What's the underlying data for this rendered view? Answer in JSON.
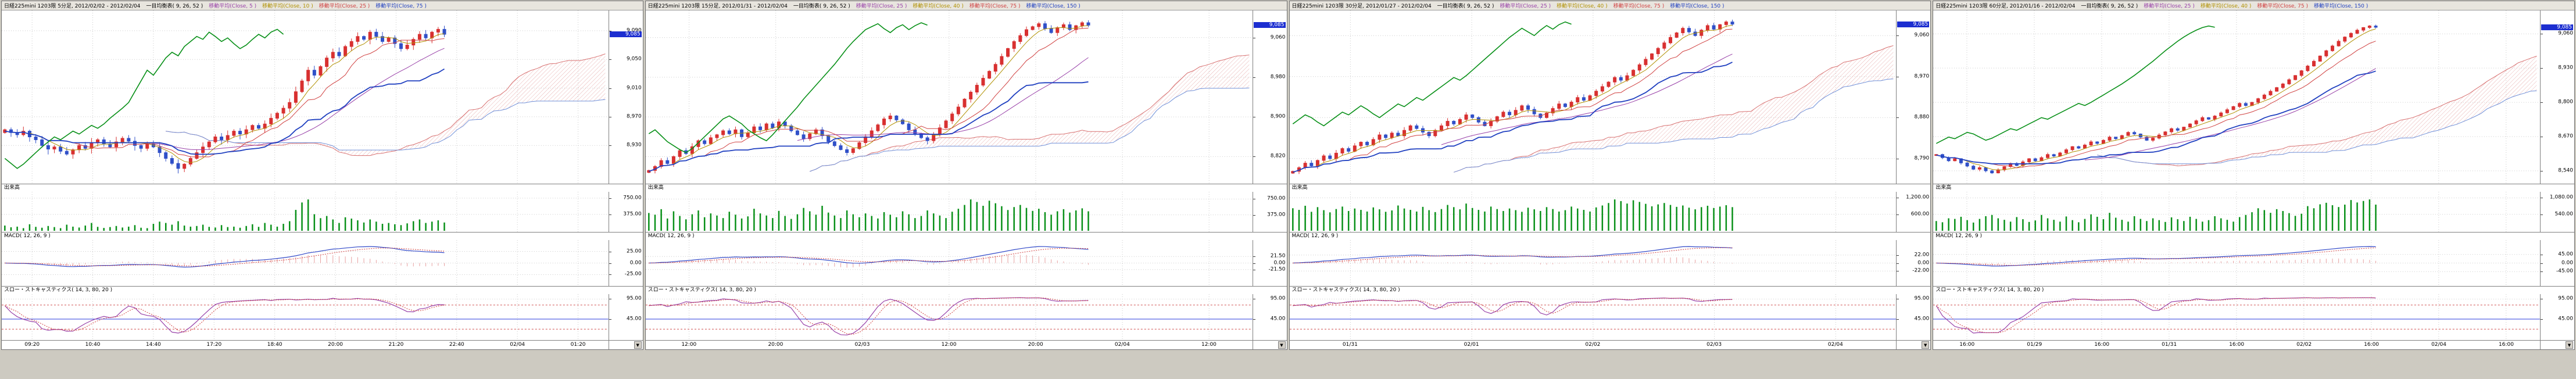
{
  "ui": {
    "scroll_button_glyph": "▼"
  },
  "colors": {
    "candle_up": "#d83030",
    "candle_down": "#3050c8",
    "volume": "#089018",
    "tenkan": "#d04040",
    "kijun": "#2040c0",
    "chikou": "#089018",
    "ma_fast": "#b09000",
    "ma_slow": "#9840a8",
    "macd_line": "#3048c8",
    "macd_signal": "#d04040",
    "macd_hist": "#e8a0a0",
    "stoch_k": "#9840a8",
    "stoch_d": "#d04040",
    "stoch_mid": "#4050e0",
    "stoch_band": "#d05050",
    "cloud_a": "#d87070",
    "cloud_b": "#7090d8",
    "cloud_hatch": "#e8b0b0",
    "grid": "#c8c8c8",
    "axis_box_bg": "#1c2ed0"
  },
  "panels": [
    {
      "header": {
        "title": "日経225mini 1203限 5分足, 2012/02/02 - 2012/02/04",
        "indicators": [
          {
            "label": "一目均衡表( 9, 26, 52 )",
            "color": "#000000"
          },
          {
            "label": "移動平均(Close, 5 )",
            "color": "#9840a8"
          },
          {
            "label": "移動平均(Close, 10 )",
            "color": "#b09000"
          },
          {
            "label": "移動平均(Close, 25 )",
            "color": "#d04040"
          },
          {
            "label": "移動平均(Close, 75 )",
            "color": "#2040c0"
          }
        ]
      },
      "price_axis": {
        "labels": [
          "9,090",
          "9,050",
          "9,010",
          "8,970",
          "8,930"
        ],
        "range": [
          8880,
          9115
        ],
        "last_price": "9,085"
      },
      "volume_section": {
        "label": "出来高",
        "axis_labels": [
          "750.00",
          "375.00"
        ]
      },
      "macd_section": {
        "label": "MACD( 12, 26, 9 )",
        "axis_labels": [
          "25.00",
          "0.00",
          "-25.00"
        ]
      },
      "stoch_section": {
        "label": "スロー・ストキャスティクス( 14, 3, 80, 20 )",
        "axis_labels": [
          "95.00",
          "45.00"
        ]
      },
      "x_axis_labels": [
        "09:20",
        "10:40",
        "14:40",
        "17:20",
        "18:40",
        "20:00",
        "21:20",
        "22:40",
        "02/04",
        "01:20"
      ],
      "chart_data": {
        "type": "candlestick",
        "closes": [
          8952,
          8948,
          8945,
          8950,
          8942,
          8938,
          8930,
          8925,
          8928,
          8922,
          8918,
          8924,
          8930,
          8926,
          8934,
          8938,
          8932,
          8928,
          8935,
          8940,
          8936,
          8930,
          8926,
          8932,
          8928,
          8920,
          8912,
          8905,
          8898,
          8904,
          8912,
          8920,
          8928,
          8935,
          8942,
          8938,
          8944,
          8950,
          8946,
          8952,
          8958,
          8954,
          8960,
          8968,
          8975,
          8982,
          8990,
          9005,
          9020,
          9035,
          9028,
          9040,
          9052,
          9060,
          9055,
          9068,
          9075,
          9082,
          9078,
          9088,
          9082,
          9075,
          9080,
          9072,
          9065,
          9070,
          9078,
          9085,
          9080,
          9088,
          9092,
          9085
        ],
        "volumes": [
          120,
          80,
          95,
          60,
          150,
          90,
          70,
          110,
          85,
          60,
          140,
          95,
          75,
          120,
          180,
          90,
          65,
          85,
          110,
          75,
          95,
          130,
          70,
          60,
          160,
          210,
          180,
          140,
          220,
          120,
          95,
          110,
          140,
          90,
          75,
          130,
          85,
          95,
          70,
          110,
          150,
          90,
          180,
          140,
          95,
          160,
          220,
          480,
          650,
          720,
          380,
          290,
          340,
          260,
          180,
          310,
          280,
          240,
          190,
          260,
          210,
          160,
          180,
          150,
          130,
          170,
          220,
          260,
          180,
          210,
          240,
          190
        ]
      }
    },
    {
      "header": {
        "title": "日経225mini 1203限 15分足, 2012/01/31 - 2012/02/04",
        "indicators": [
          {
            "label": "一目均衡表( 9, 26, 52 )",
            "color": "#000000"
          },
          {
            "label": "移動平均(Close, 25 )",
            "color": "#9840a8"
          },
          {
            "label": "移動平均(Close, 40 )",
            "color": "#b09000"
          },
          {
            "label": "移動平均(Close, 75 )",
            "color": "#d04040"
          },
          {
            "label": "移動平均(Close, 150 )",
            "color": "#2040c0"
          }
        ]
      },
      "price_axis": {
        "labels": [
          "9,060",
          "8,980",
          "8,900",
          "8,820"
        ],
        "range": [
          8770,
          9110
        ],
        "last_price": "9,085"
      },
      "volume_section": {
        "label": "出来高",
        "axis_labels": [
          "750.00",
          "375.00"
        ]
      },
      "macd_section": {
        "label": "MACD( 12, 26, 9 )",
        "axis_labels": [
          "21.50",
          "0.00",
          "-21.50"
        ]
      },
      "stoch_section": {
        "label": "スロー・ストキャスティクス( 14, 3, 80, 20 )",
        "axis_labels": [
          "95.00",
          "45.00"
        ]
      },
      "x_axis_labels": [
        "12:00",
        "20:00",
        "02/03",
        "12:00",
        "20:00",
        "02/04",
        "12:00"
      ],
      "chart_data": {
        "type": "candlestick",
        "closes": [
          8792,
          8800,
          8812,
          8806,
          8820,
          8832,
          8826,
          8840,
          8852,
          8846,
          8858,
          8864,
          8872,
          8866,
          8874,
          8860,
          8868,
          8880,
          8874,
          8886,
          8878,
          8890,
          8882,
          8872,
          8864,
          8856,
          8866,
          8874,
          8862,
          8850,
          8842,
          8834,
          8828,
          8836,
          8848,
          8860,
          8872,
          8884,
          8896,
          8902,
          8894,
          8886,
          8874,
          8866,
          8858,
          8852,
          8864,
          8878,
          8892,
          8906,
          8920,
          8936,
          8950,
          8964,
          8978,
          8992,
          9006,
          9022,
          9038,
          9052,
          9064,
          9076,
          9082,
          9088,
          9078,
          9070,
          9080,
          9086,
          9076,
          9084,
          9090,
          9085
        ],
        "volumes": [
          420,
          380,
          510,
          290,
          460,
          350,
          270,
          390,
          480,
          320,
          410,
          360,
          300,
          450,
          380,
          290,
          340,
          520,
          410,
          360,
          300,
          470,
          350,
          280,
          390,
          540,
          460,
          380,
          590,
          430,
          360,
          300,
          480,
          390,
          320,
          410,
          350,
          290,
          440,
          380,
          320,
          460,
          390,
          300,
          350,
          480,
          410,
          360,
          300,
          450,
          520,
          610,
          740,
          680,
          590,
          710,
          650,
          580,
          490,
          560,
          610,
          540,
          470,
          520,
          440,
          380,
          460,
          510,
          430,
          480,
          530,
          460
        ]
      }
    },
    {
      "header": {
        "title": "日経225mini 1203限 30分足, 2012/01/27 - 2012/02/04",
        "indicators": [
          {
            "label": "一目均衡表( 9, 26, 52 )",
            "color": "#000000"
          },
          {
            "label": "移動平均(Close, 25 )",
            "color": "#9840a8"
          },
          {
            "label": "移動平均(Close, 40 )",
            "color": "#b09000"
          },
          {
            "label": "移動平均(Close, 75 )",
            "color": "#d04040"
          },
          {
            "label": "移動平均(Close, 150 )",
            "color": "#2040c0"
          }
        ]
      },
      "price_axis": {
        "labels": [
          "9,060",
          "8,970",
          "8,880",
          "8,790"
        ],
        "range": [
          8740,
          9110
        ],
        "last_price": "9,085"
      },
      "volume_section": {
        "label": "出来高",
        "axis_labels": [
          "1,200.00",
          "600.00"
        ]
      },
      "macd_section": {
        "label": "MACD( 12, 26, 9 )",
        "axis_labels": [
          "22.00",
          "0.00",
          "-22.00"
        ]
      },
      "stoch_section": {
        "label": "スロー・ストキャスティクス( 14, 3, 80, 20 )",
        "axis_labels": [
          "95.00",
          "45.00"
        ]
      },
      "x_axis_labels": [
        "01/31",
        "02/01",
        "02/02",
        "02/03",
        "02/04"
      ],
      "chart_data": {
        "type": "candlestick",
        "closes": [
          8762,
          8770,
          8780,
          8774,
          8786,
          8796,
          8790,
          8802,
          8812,
          8806,
          8818,
          8826,
          8820,
          8832,
          8842,
          8836,
          8846,
          8840,
          8852,
          8862,
          8856,
          8848,
          8840,
          8852,
          8862,
          8872,
          8866,
          8876,
          8886,
          8880,
          8870,
          8862,
          8872,
          8882,
          8892,
          8886,
          8896,
          8906,
          8898,
          8888,
          8880,
          8890,
          8900,
          8910,
          8904,
          8914,
          8924,
          8918,
          8928,
          8938,
          8948,
          8958,
          8968,
          8962,
          8972,
          8984,
          8996,
          9008,
          9020,
          9032,
          9044,
          9056,
          9066,
          9076,
          9068,
          9060,
          9072,
          9082,
          9074,
          9084,
          9090,
          9085
        ],
        "volumes": [
          820,
          760,
          910,
          690,
          860,
          750,
          670,
          790,
          880,
          720,
          810,
          760,
          700,
          850,
          780,
          690,
          740,
          920,
          810,
          760,
          700,
          870,
          750,
          680,
          790,
          940,
          860,
          780,
          990,
          830,
          760,
          700,
          880,
          790,
          720,
          810,
          750,
          690,
          840,
          780,
          720,
          860,
          790,
          700,
          750,
          880,
          810,
          760,
          700,
          850,
          920,
          1010,
          1140,
          1080,
          990,
          1110,
          1050,
          980,
          890,
          960,
          1010,
          940,
          870,
          920,
          840,
          780,
          860,
          910,
          830,
          880,
          930,
          860
        ]
      }
    },
    {
      "header": {
        "title": "日経225mini 1203限 60分足, 2012/01/16 - 2012/02/04",
        "indicators": [
          {
            "label": "一目均衡表( 9, 26, 52 )",
            "color": "#000000"
          },
          {
            "label": "移動平均(Close, 25 )",
            "color": "#9840a8"
          },
          {
            "label": "移動平均(Close, 40 )",
            "color": "#b09000"
          },
          {
            "label": "移動平均(Close, 75 )",
            "color": "#d04040"
          },
          {
            "label": "移動平均(Close, 150 )",
            "color": "#2040c0"
          }
        ]
      },
      "price_axis": {
        "labels": [
          "9,060",
          "8,930",
          "8,800",
          "8,670",
          "8,540"
        ],
        "range": [
          8500,
          9140
        ],
        "last_price": "9,085"
      },
      "volume_section": {
        "label": "出来高",
        "axis_labels": [
          "1,080.00",
          "540.00"
        ]
      },
      "macd_section": {
        "label": "MACD( 12, 26, 9 )",
        "axis_labels": [
          "45.00",
          "0.00",
          "-45.00"
        ]
      },
      "stoch_section": {
        "label": "スロー・ストキャスティクス( 14, 3, 80, 20 )",
        "axis_labels": [
          "95.00",
          "45.00"
        ]
      },
      "x_axis_labels": [
        "16:00",
        "01/29",
        "16:00",
        "01/31",
        "16:00",
        "02/02",
        "16:00",
        "02/04",
        "16:00"
      ],
      "chart_data": {
        "type": "candlestick",
        "closes": [
          8602,
          8590,
          8578,
          8586,
          8570,
          8558,
          8546,
          8552,
          8540,
          8532,
          8544,
          8556,
          8568,
          8560,
          8574,
          8586,
          8578,
          8590,
          8602,
          8596,
          8608,
          8620,
          8632,
          8626,
          8638,
          8650,
          8644,
          8656,
          8668,
          8662,
          8674,
          8686,
          8680,
          8668,
          8656,
          8664,
          8676,
          8688,
          8700,
          8694,
          8706,
          8718,
          8730,
          8742,
          8736,
          8748,
          8760,
          8772,
          8784,
          8796,
          8788,
          8800,
          8814,
          8828,
          8842,
          8856,
          8870,
          8886,
          8902,
          8920,
          8938,
          8956,
          8976,
          8996,
          9014,
          9032,
          9048,
          9062,
          9074,
          9084,
          9090,
          9085
        ],
        "volumes": [
          320,
          280,
          410,
          390,
          460,
          350,
          270,
          390,
          480,
          520,
          410,
          360,
          300,
          450,
          380,
          290,
          340,
          520,
          410,
          360,
          300,
          470,
          350,
          280,
          390,
          540,
          460,
          380,
          590,
          430,
          360,
          300,
          480,
          390,
          320,
          410,
          350,
          290,
          440,
          380,
          320,
          460,
          390,
          300,
          350,
          480,
          410,
          360,
          300,
          450,
          520,
          610,
          740,
          680,
          590,
          710,
          650,
          580,
          490,
          560,
          810,
          740,
          870,
          920,
          840,
          780,
          860,
          1010,
          930,
          980,
          1030,
          860
        ]
      }
    }
  ]
}
